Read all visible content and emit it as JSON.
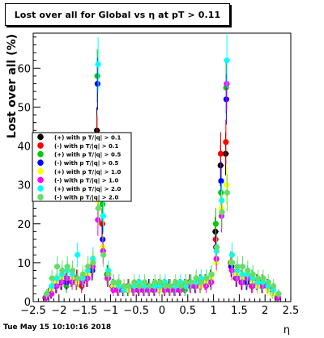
{
  "chart_data": {
    "type": "scatter",
    "title": "Lost over all for Global vs   η at pT > 0.11",
    "xlabel": "η",
    "ylabel": "Lost over all (%)",
    "xlim": [
      -2.5,
      2.5
    ],
    "ylim": [
      0,
      69
    ],
    "x_ticks": [
      -2.5,
      -2,
      -1.5,
      -1,
      -0.5,
      0,
      0.5,
      1,
      1.5,
      2,
      2.5
    ],
    "x_tick_labels": [
      "−2.5",
      "−2",
      "−1.5",
      "−1",
      "−0.5",
      "0",
      "0.5",
      "1",
      "1.5",
      "2",
      "2.5"
    ],
    "y_ticks": [
      0,
      10,
      20,
      30,
      40,
      50,
      60
    ],
    "y_tick_labels": [
      "0",
      "10",
      "20",
      "30",
      "40",
      "50",
      "60"
    ],
    "grid": false,
    "legend_position": "middle-left",
    "footer": "Tue May 15 10:10:16 2018",
    "series": [
      {
        "name": "(+) with p T/|q| > 0.1",
        "color": "#000000",
        "x": [
          -2.25,
          -2.15,
          -2.05,
          -1.95,
          -1.85,
          -1.75,
          -1.65,
          -1.55,
          -1.45,
          -1.35,
          -1.25,
          -1.15,
          -1.05,
          -0.95,
          -0.85,
          -0.75,
          -0.65,
          -0.55,
          -0.45,
          -0.35,
          -0.25,
          -0.15,
          -0.05,
          0.05,
          0.15,
          0.25,
          0.35,
          0.45,
          0.55,
          0.65,
          0.75,
          0.85,
          0.95,
          1.05,
          1.15,
          1.25,
          1.35,
          1.45,
          1.55,
          1.65,
          1.75,
          1.85,
          1.95,
          2.05,
          2.15,
          2.25
        ],
        "values": [
          1,
          3,
          4,
          5,
          6,
          6,
          5,
          5,
          6,
          9,
          44,
          20,
          7,
          4,
          3,
          3,
          3,
          3,
          4,
          3,
          3,
          4,
          4,
          4,
          4,
          3,
          4,
          4,
          5,
          4,
          5,
          5,
          6,
          18,
          35,
          38,
          10,
          6,
          6,
          5,
          5,
          5,
          4,
          4,
          3,
          1
        ]
      },
      {
        "name": "(-) with p T/|q| > 0.1",
        "color": "#ff0000",
        "x": [
          -2.25,
          -2.15,
          -2.05,
          -1.95,
          -1.85,
          -1.75,
          -1.65,
          -1.55,
          -1.45,
          -1.35,
          -1.25,
          -1.15,
          -1.05,
          -0.95,
          -0.85,
          -0.75,
          -0.65,
          -0.55,
          -0.45,
          -0.35,
          -0.25,
          -0.15,
          -0.05,
          0.05,
          0.15,
          0.25,
          0.35,
          0.45,
          0.55,
          0.65,
          0.75,
          0.85,
          0.95,
          1.05,
          1.15,
          1.25,
          1.35,
          1.45,
          1.55,
          1.65,
          1.75,
          1.85,
          1.95,
          2.05,
          2.15,
          2.25
        ],
        "values": [
          1,
          2,
          4,
          6,
          5,
          6,
          6,
          4,
          6,
          8,
          42,
          20,
          6,
          4,
          3,
          3,
          4,
          3,
          3,
          3,
          4,
          3,
          4,
          3,
          3,
          4,
          3,
          4,
          4,
          4,
          4,
          5,
          6,
          16,
          38,
          41,
          9,
          6,
          5,
          6,
          4,
          5,
          5,
          4,
          3,
          1
        ]
      },
      {
        "name": "(+) with p T/|q| > 0.5",
        "color": "#00cc00",
        "x": [
          -2.25,
          -2.15,
          -2.05,
          -1.95,
          -1.85,
          -1.75,
          -1.65,
          -1.55,
          -1.45,
          -1.35,
          -1.25,
          -1.15,
          -1.05,
          -0.95,
          -0.85,
          -0.75,
          -0.65,
          -0.55,
          -0.45,
          -0.35,
          -0.25,
          -0.15,
          -0.05,
          0.05,
          0.15,
          0.25,
          0.35,
          0.45,
          0.55,
          0.65,
          0.75,
          0.85,
          0.95,
          1.05,
          1.15,
          1.25,
          1.35,
          1.45,
          1.55,
          1.65,
          1.75,
          1.85,
          1.95,
          2.05,
          2.15,
          2.25
        ],
        "values": [
          1,
          3,
          5,
          6,
          4,
          6,
          5,
          5,
          7,
          9,
          58,
          25,
          7,
          4,
          4,
          3,
          3,
          3,
          4,
          3,
          3,
          3,
          4,
          4,
          3,
          3,
          4,
          3,
          4,
          4,
          5,
          5,
          5,
          20,
          28,
          55,
          10,
          7,
          6,
          5,
          6,
          5,
          4,
          4,
          2,
          1
        ]
      },
      {
        "name": "(-) with p T/|q| > 0.5",
        "color": "#0000ff",
        "x": [
          -2.25,
          -2.15,
          -2.05,
          -1.95,
          -1.85,
          -1.75,
          -1.65,
          -1.55,
          -1.45,
          -1.35,
          -1.25,
          -1.15,
          -1.05,
          -0.95,
          -0.85,
          -0.75,
          -0.65,
          -0.55,
          -0.45,
          -0.35,
          -0.25,
          -0.15,
          -0.05,
          0.05,
          0.15,
          0.25,
          0.35,
          0.45,
          0.55,
          0.65,
          0.75,
          0.85,
          0.95,
          1.05,
          1.15,
          1.25,
          1.35,
          1.45,
          1.55,
          1.65,
          1.75,
          1.85,
          1.95,
          2.05,
          2.15,
          2.25
        ],
        "values": [
          1,
          2,
          4,
          5,
          5,
          6,
          5,
          5,
          6,
          8,
          56,
          16,
          6,
          4,
          3,
          3,
          3,
          3,
          3,
          3,
          4,
          3,
          3,
          3,
          4,
          3,
          3,
          4,
          4,
          4,
          4,
          5,
          6,
          14,
          31,
          52,
          9,
          6,
          5,
          5,
          5,
          4,
          4,
          4,
          3,
          1
        ]
      },
      {
        "name": "(+) with p T/|q| > 1.0",
        "color": "#ffff00",
        "x": [
          -2.25,
          -2.15,
          -2.05,
          -1.95,
          -1.85,
          -1.75,
          -1.65,
          -1.55,
          -1.45,
          -1.35,
          -1.25,
          -1.15,
          -1.05,
          -0.95,
          -0.85,
          -0.75,
          -0.65,
          -0.55,
          -0.45,
          -0.35,
          -0.25,
          -0.15,
          -0.05,
          0.05,
          0.15,
          0.25,
          0.35,
          0.45,
          0.55,
          0.65,
          0.75,
          0.85,
          0.95,
          1.05,
          1.15,
          1.25,
          1.35,
          1.45,
          1.55,
          1.65,
          1.75,
          1.85,
          1.95,
          2.05,
          2.15,
          2.25
        ],
        "values": [
          1,
          3,
          5,
          6,
          6,
          6,
          5,
          6,
          7,
          10,
          26,
          14,
          6,
          4,
          3,
          3,
          3,
          3,
          4,
          3,
          3,
          4,
          3,
          3,
          4,
          3,
          4,
          4,
          4,
          5,
          4,
          5,
          6,
          10,
          24,
          30,
          10,
          7,
          6,
          6,
          5,
          4,
          4,
          3,
          2,
          1
        ]
      },
      {
        "name": "(-) with p T/|q| > 1.0",
        "color": "#ff00ff",
        "x": [
          -2.25,
          -2.15,
          -2.05,
          -1.95,
          -1.85,
          -1.75,
          -1.65,
          -1.55,
          -1.45,
          -1.35,
          -1.25,
          -1.15,
          -1.05,
          -0.95,
          -0.85,
          -0.75,
          -0.65,
          -0.55,
          -0.45,
          -0.35,
          -0.25,
          -0.15,
          -0.05,
          0.05,
          0.15,
          0.25,
          0.35,
          0.45,
          0.55,
          0.65,
          0.75,
          0.85,
          0.95,
          1.05,
          1.15,
          1.25,
          1.35,
          1.45,
          1.55,
          1.65,
          1.75,
          1.85,
          1.95,
          2.05,
          2.15,
          2.25
        ],
        "values": [
          1,
          2,
          4,
          5,
          6,
          5,
          6,
          5,
          6,
          9,
          21,
          13,
          6,
          3,
          3,
          3,
          4,
          3,
          3,
          3,
          3,
          3,
          4,
          3,
          3,
          3,
          3,
          4,
          4,
          4,
          5,
          4,
          5,
          11,
          22,
          56,
          8,
          6,
          5,
          6,
          4,
          5,
          4,
          4,
          3,
          1
        ]
      },
      {
        "name": "(+) with p T/|q| > 2.0",
        "color": "#00ffff",
        "x": [
          -2.25,
          -2.15,
          -2.05,
          -1.95,
          -1.85,
          -1.75,
          -1.65,
          -1.55,
          -1.45,
          -1.35,
          -1.25,
          -1.15,
          -1.05,
          -0.95,
          -0.85,
          -0.75,
          -0.65,
          -0.55,
          -0.45,
          -0.35,
          -0.25,
          -0.15,
          -0.05,
          0.05,
          0.15,
          0.25,
          0.35,
          0.45,
          0.55,
          0.65,
          0.75,
          0.85,
          0.95,
          1.05,
          1.15,
          1.25,
          1.35,
          1.45,
          1.55,
          1.65,
          1.75,
          1.85,
          1.95,
          2.05,
          2.15,
          2.25
        ],
        "values": [
          2,
          4,
          6,
          7,
          8,
          7,
          12,
          6,
          8,
          11,
          61,
          22,
          8,
          5,
          4,
          3,
          4,
          4,
          5,
          4,
          4,
          4,
          4,
          5,
          4,
          4,
          5,
          4,
          5,
          5,
          6,
          6,
          7,
          13,
          26,
          62,
          12,
          8,
          7,
          7,
          6,
          5,
          5,
          4,
          3,
          2
        ]
      },
      {
        "name": "(-) with p T/|q| > 2.0",
        "color": "#66dd66",
        "x": [
          -2.25,
          -2.15,
          -2.05,
          -1.95,
          -1.85,
          -1.75,
          -1.65,
          -1.55,
          -1.45,
          -1.35,
          -1.25,
          -1.15,
          -1.05,
          -0.95,
          -0.85,
          -0.75,
          -0.65,
          -0.55,
          -0.45,
          -0.35,
          -0.25,
          -0.15,
          -0.05,
          0.05,
          0.15,
          0.25,
          0.35,
          0.45,
          0.55,
          0.65,
          0.75,
          0.85,
          0.95,
          1.05,
          1.15,
          1.25,
          1.35,
          1.45,
          1.55,
          1.65,
          1.75,
          1.85,
          1.95,
          2.05,
          2.15,
          2.25
        ],
        "values": [
          2,
          6,
          9,
          8,
          9,
          8,
          6,
          7,
          9,
          10,
          24,
          12,
          7,
          5,
          5,
          4,
          4,
          5,
          4,
          5,
          4,
          5,
          5,
          4,
          4,
          5,
          4,
          5,
          5,
          6,
          5,
          6,
          7,
          14,
          23,
          28,
          10,
          9,
          9,
          8,
          7,
          6,
          6,
          5,
          4,
          2
        ]
      }
    ]
  }
}
